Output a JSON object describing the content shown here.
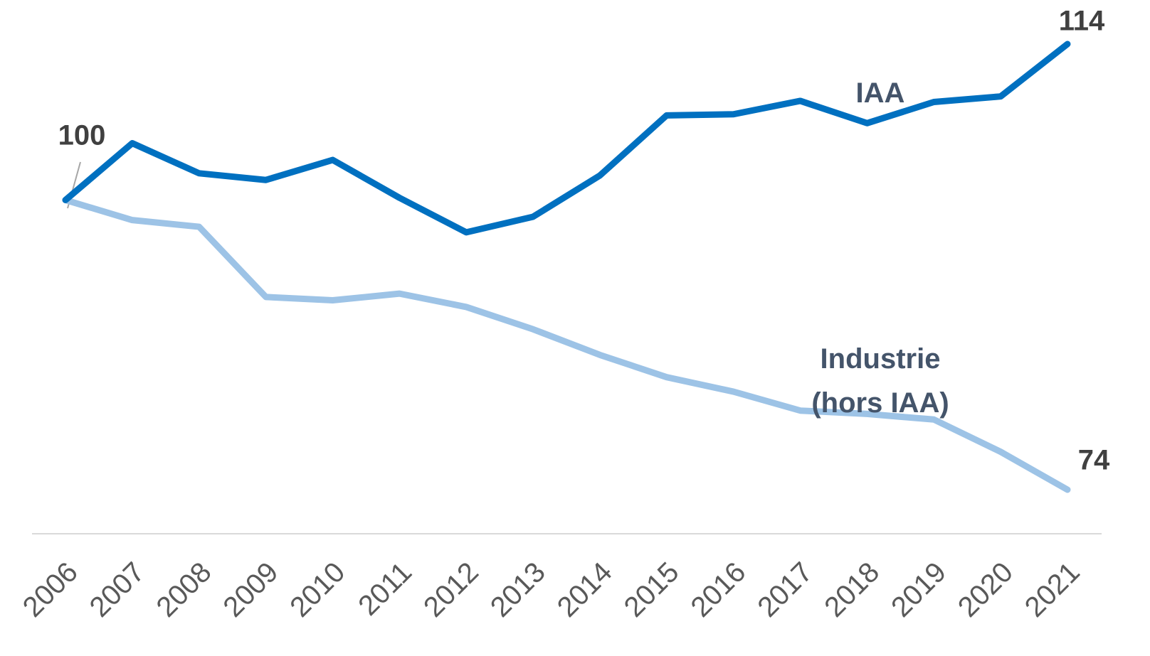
{
  "chart_data": {
    "type": "line",
    "x": [
      2006,
      2007,
      2008,
      2009,
      2010,
      2011,
      2012,
      2013,
      2014,
      2015,
      2016,
      2017,
      2018,
      2019,
      2020,
      2021
    ],
    "series": [
      {
        "name": "IAA",
        "color": "#0070c0",
        "values": [
          100,
          105.1,
          102.4,
          101.8,
          103.6,
          100.2,
          97.1,
          98.5,
          102.2,
          107.6,
          107.7,
          108.9,
          106.9,
          108.8,
          109.3,
          114
        ]
      },
      {
        "name": "Industrie (hors IAA)",
        "color": "#9dc3e6",
        "values": [
          100,
          98.2,
          97.6,
          91.3,
          91.0,
          91.6,
          90.4,
          88.4,
          86.1,
          84.1,
          82.8,
          81.1,
          80.8,
          80.3,
          77.4,
          74
        ]
      }
    ]
  }
}
